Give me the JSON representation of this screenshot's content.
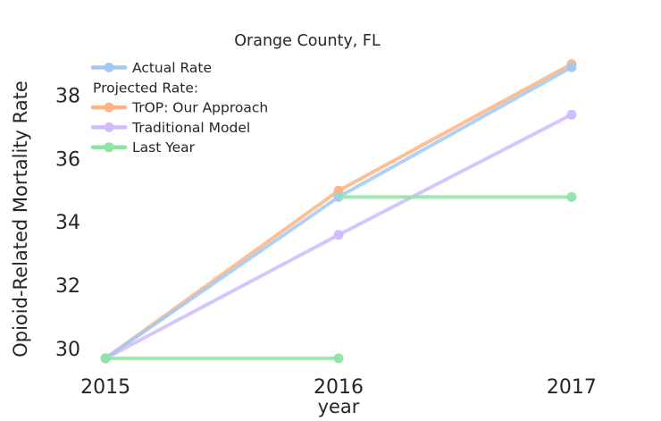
{
  "chart_data": {
    "type": "line",
    "title": "Orange County, FL",
    "xlabel": "year",
    "ylabel": "Opioid-Related Mortality Rate",
    "xlim": [
      2014.9,
      2017.1
    ],
    "ylim": [
      29.19,
      39.47
    ],
    "xticks": [
      2015,
      2016,
      2017
    ],
    "yticks": [
      30,
      32,
      34,
      36,
      38
    ],
    "grid": false,
    "spines": false,
    "text_color": "#262626",
    "background_color": "#ffffff",
    "legend": {
      "position": "upper-left",
      "frame": false,
      "items": [
        {
          "label": "Actual Rate",
          "series_id": "actual"
        },
        {
          "label": "Projected Rate:",
          "header": true
        },
        {
          "label": "TrOP: Our Approach",
          "series_id": "trop"
        },
        {
          "label": "Traditional Model",
          "series_id": "traditional"
        },
        {
          "label": "Last Year",
          "series_id": "last_year"
        }
      ]
    },
    "series": [
      {
        "id": "actual",
        "name": "Actual Rate",
        "color": "#a1c9f4",
        "z": 3,
        "marker": "circle",
        "x": [
          2015,
          2016,
          2017
        ],
        "values": [
          29.7,
          34.8,
          38.9
        ]
      },
      {
        "id": "trop",
        "name": "TrOP: Our Approach",
        "color": "#ffb482",
        "z": 2,
        "marker": "circle",
        "x": [
          2015,
          2016,
          2017
        ],
        "values": [
          29.7,
          35.0,
          39.0
        ]
      },
      {
        "id": "traditional",
        "name": "Traditional Model",
        "color": "#d0bbff",
        "z": 1,
        "marker": "circle",
        "x": [
          2015,
          2016,
          2017
        ],
        "values": [
          29.7,
          33.6,
          37.4
        ]
      },
      {
        "id": "last_year",
        "name": "Last Year",
        "color": "#8de5a1",
        "z": 4,
        "marker": "circle",
        "segments": [
          {
            "points": [
              [
                2015,
                29.7
              ],
              [
                2016,
                29.7
              ]
            ],
            "markers": "both"
          },
          {
            "points": [
              [
                2016,
                34.8
              ],
              [
                2017,
                34.8
              ]
            ],
            "markers": "end"
          }
        ]
      }
    ]
  }
}
